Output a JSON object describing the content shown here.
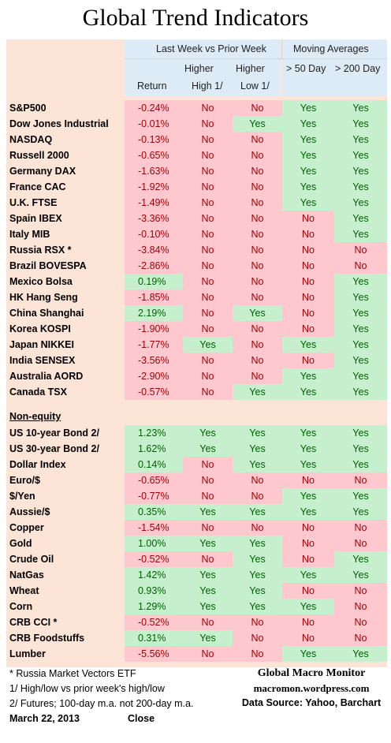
{
  "title": "Global Trend Indicators",
  "headers": {
    "group_week": "Last Week vs Prior Week",
    "group_ma": "Moving Averages",
    "return": "Return",
    "higher_high_1": "Higher",
    "higher_high_2": "High  1/",
    "higher_low_1": "Higher",
    "higher_low_2": "Low  1/",
    "ma50": "> 50 Day",
    "ma200": "> 200 Day"
  },
  "colors": {
    "positive_fill": "#c6efce",
    "positive_text": "#006100",
    "negative_fill": "#ffc7ce",
    "negative_text": "#9c0006",
    "sheet": "#fce4d6",
    "header_band": "#ddebf7"
  },
  "equity_rows": [
    {
      "name": "S&P500",
      "ret": "-0.24%",
      "hh": "No",
      "hl": "No",
      "m50": "Yes",
      "m200": "Yes"
    },
    {
      "name": "Dow Jones Industrial",
      "ret": "-0.01%",
      "hh": "No",
      "hl": "Yes",
      "m50": "Yes",
      "m200": "Yes"
    },
    {
      "name": "NASDAQ",
      "ret": "-0.13%",
      "hh": "No",
      "hl": "No",
      "m50": "Yes",
      "m200": "Yes"
    },
    {
      "name": "Russell 2000",
      "ret": "-0.65%",
      "hh": "No",
      "hl": "No",
      "m50": "Yes",
      "m200": "Yes"
    },
    {
      "name": "Germany DAX",
      "ret": "-1.63%",
      "hh": "No",
      "hl": "No",
      "m50": "Yes",
      "m200": "Yes"
    },
    {
      "name": "France CAC",
      "ret": "-1.92%",
      "hh": "No",
      "hl": "No",
      "m50": "Yes",
      "m200": "Yes"
    },
    {
      "name": "U.K. FTSE",
      "ret": "-1.49%",
      "hh": "No",
      "hl": "No",
      "m50": "Yes",
      "m200": "Yes"
    },
    {
      "name": "Spain IBEX",
      "ret": "-3.36%",
      "hh": "No",
      "hl": "No",
      "m50": "No",
      "m200": "Yes"
    },
    {
      "name": "Italy  MIB",
      "ret": "-0.10%",
      "hh": "No",
      "hl": "No",
      "m50": "No",
      "m200": "Yes"
    },
    {
      "name": "Russia RSX *",
      "ret": "-3.84%",
      "hh": "No",
      "hl": "No",
      "m50": "No",
      "m200": "No"
    },
    {
      "name": "Brazil BOVESPA",
      "ret": "-2.86%",
      "hh": "No",
      "hl": "No",
      "m50": "No",
      "m200": "No"
    },
    {
      "name": "Mexico Bolsa",
      "ret": "0.19%",
      "hh": "No",
      "hl": "No",
      "m50": "No",
      "m200": "Yes"
    },
    {
      "name": "HK  Hang Seng",
      "ret": "-1.85%",
      "hh": "No",
      "hl": "No",
      "m50": "No",
      "m200": "Yes"
    },
    {
      "name": "China Shanghai",
      "ret": "2.19%",
      "hh": "No",
      "hl": "Yes",
      "m50": "No",
      "m200": "Yes"
    },
    {
      "name": "Korea KOSPI",
      "ret": "-1.90%",
      "hh": "No",
      "hl": "No",
      "m50": "No",
      "m200": "Yes"
    },
    {
      "name": "Japan NIKKEI",
      "ret": "-1.77%",
      "hh": "Yes",
      "hl": "No",
      "m50": "Yes",
      "m200": "Yes"
    },
    {
      "name": "India SENSEX",
      "ret": "-3.56%",
      "hh": "No",
      "hl": "No",
      "m50": "No",
      "m200": "Yes"
    },
    {
      "name": "Australia AORD",
      "ret": "-2.90%",
      "hh": "No",
      "hl": "No",
      "m50": "Yes",
      "m200": "Yes"
    },
    {
      "name": "Canada TSX",
      "ret": "-0.57%",
      "hh": "No",
      "hl": "Yes",
      "m50": "Yes",
      "m200": "Yes"
    }
  ],
  "non_equity_title": "Non-equity",
  "non_equity_rows": [
    {
      "name": "US 10-year Bond 2/",
      "ret": "1.23%",
      "hh": "Yes",
      "hl": "Yes",
      "m50": "Yes",
      "m200": "Yes"
    },
    {
      "name": "US 30-year Bond 2/",
      "ret": "1.62%",
      "hh": "Yes",
      "hl": "Yes",
      "m50": "Yes",
      "m200": "Yes"
    },
    {
      "name": "Dollar Index",
      "ret": "0.14%",
      "hh": "No",
      "hl": "Yes",
      "m50": "Yes",
      "m200": "Yes"
    },
    {
      "name": "Euro/$",
      "ret": "-0.65%",
      "hh": "No",
      "hl": "No",
      "m50": "No",
      "m200": "No"
    },
    {
      "name": "$/Yen",
      "ret": "-0.77%",
      "hh": "No",
      "hl": "No",
      "m50": "Yes",
      "m200": "Yes"
    },
    {
      "name": "Aussie/$",
      "ret": "0.35%",
      "hh": "Yes",
      "hl": "Yes",
      "m50": "Yes",
      "m200": "Yes"
    },
    {
      "name": "Copper",
      "ret": "-1.54%",
      "hh": "No",
      "hl": "No",
      "m50": "No",
      "m200": "No"
    },
    {
      "name": "Gold",
      "ret": "1.00%",
      "hh": "Yes",
      "hl": "Yes",
      "m50": "No",
      "m200": "No"
    },
    {
      "name": "Crude Oil",
      "ret": "-0.52%",
      "hh": "No",
      "hl": "Yes",
      "m50": "No",
      "m200": "Yes"
    },
    {
      "name": "NatGas",
      "ret": "1.42%",
      "hh": "Yes",
      "hl": "Yes",
      "m50": "Yes",
      "m200": "Yes"
    },
    {
      "name": "Wheat",
      "ret": "0.93%",
      "hh": "Yes",
      "hl": "Yes",
      "m50": "No",
      "m200": "No"
    },
    {
      "name": "Corn",
      "ret": "1.29%",
      "hh": "Yes",
      "hl": "Yes",
      "m50": "Yes",
      "m200": "No"
    },
    {
      "name": "CRB CCI *",
      "ret": "-0.52%",
      "hh": "No",
      "hl": "No",
      "m50": "No",
      "m200": "No"
    },
    {
      "name": "CRB Foodstuffs",
      "ret": "0.31%",
      "hh": "Yes",
      "hl": "No",
      "m50": "No",
      "m200": "No"
    },
    {
      "name": "Lumber",
      "ret": "-5.56%",
      "hh": "No",
      "hl": "No",
      "m50": "Yes",
      "m200": "Yes"
    }
  ],
  "footnotes": {
    "note_star": "* Russia Market Vectors ETF",
    "note_1": "1/  High/low vs prior week's high/low",
    "note_2": "2/  Futures;  100-day m.a. not 200-day m.a.",
    "date": "March 22, 2013",
    "close": "Close",
    "brand": "Global Macro Monitor",
    "site": "macromon.wordpress.com",
    "source": "Data Source: Yahoo, Barchart"
  }
}
